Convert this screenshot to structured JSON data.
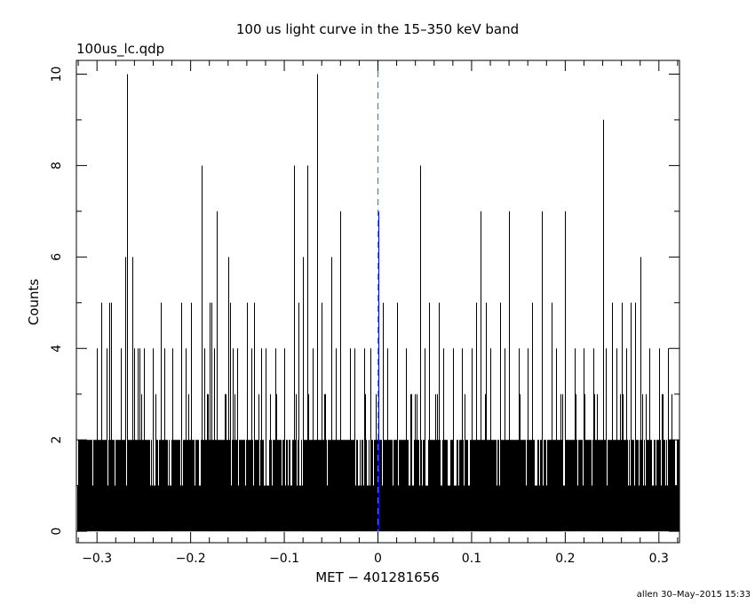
{
  "page": {
    "title": "100 us light curve in the 15–350 keV band",
    "file_label": "100us_lc.qdp",
    "timestamp": "allen 30–May–2015 15:33"
  },
  "colors": {
    "background": "#ffffff",
    "foreground": "#000000",
    "trigger_line": "#00a0c8",
    "trigger_bin": "#0000ff"
  },
  "chart_data": {
    "type": "bar",
    "style": "histogram-step",
    "title": "100 us light curve in the 15–350 keV band",
    "xlabel": "MET − 401281656",
    "ylabel": "Counts",
    "xlim": [
      -0.322,
      0.322
    ],
    "ylim": [
      -0.25,
      10.3
    ],
    "bin_width": 0.0001,
    "x_ticks": [
      -0.3,
      -0.2,
      -0.1,
      0,
      0.1,
      0.2,
      0.3
    ],
    "x_tick_labels": [
      "−0.3",
      "−0.2",
      "−0.1",
      "0",
      "0.1",
      "0.2",
      "0.3"
    ],
    "y_ticks": [
      0,
      2,
      4,
      6,
      8,
      10
    ],
    "y_tick_labels": [
      "0",
      "2",
      "4",
      "6",
      "8",
      "10"
    ],
    "grid": false,
    "legend": "none",
    "baseline_counts": "0–2 counts per bin across the full range, occasionally 3",
    "spikes": {
      "x": [
        -0.3,
        -0.295,
        -0.29,
        -0.287,
        -0.285,
        -0.275,
        -0.27,
        -0.268,
        -0.262,
        -0.26,
        -0.257,
        -0.255,
        -0.25,
        -0.24,
        -0.232,
        -0.228,
        -0.22,
        -0.21,
        -0.205,
        -0.2,
        -0.188,
        -0.185,
        -0.18,
        -0.178,
        -0.175,
        -0.172,
        -0.16,
        -0.158,
        -0.155,
        -0.15,
        -0.14,
        -0.135,
        -0.132,
        -0.125,
        -0.12,
        -0.11,
        -0.1,
        -0.09,
        -0.085,
        -0.08,
        -0.075,
        -0.07,
        -0.065,
        -0.06,
        -0.05,
        -0.045,
        -0.04,
        -0.03,
        -0.025,
        -0.015,
        -0.008,
        0,
        0.005,
        0.01,
        0.02,
        0.03,
        0.045,
        0.05,
        0.055,
        0.065,
        0.07,
        0.08,
        0.09,
        0.1,
        0.105,
        0.11,
        0.115,
        0.12,
        0.13,
        0.135,
        0.14,
        0.15,
        0.16,
        0.165,
        0.175,
        0.185,
        0.19,
        0.2,
        0.21,
        0.22,
        0.23,
        0.24,
        0.243,
        0.25,
        0.255,
        0.26,
        0.265,
        0.27,
        0.275,
        0.28,
        0.29,
        0.3,
        0.31
      ],
      "counts": [
        4,
        5,
        4,
        5,
        5,
        4,
        6,
        10,
        6,
        4,
        4,
        4,
        4,
        4,
        5,
        4,
        4,
        5,
        4,
        5,
        8,
        4,
        5,
        5,
        4,
        7,
        6,
        5,
        4,
        4,
        5,
        4,
        5,
        4,
        4,
        4,
        4,
        8,
        5,
        6,
        8,
        4,
        10,
        5,
        6,
        4,
        7,
        4,
        4,
        4,
        4,
        7,
        5,
        4,
        5,
        4,
        8,
        4,
        5,
        5,
        4,
        4,
        4,
        4,
        5,
        7,
        5,
        4,
        5,
        4,
        7,
        4,
        4,
        5,
        7,
        5,
        4,
        7,
        4,
        4,
        4,
        9,
        4,
        5,
        4,
        5,
        4,
        5,
        5,
        6,
        4,
        4,
        4
      ]
    },
    "trigger_time": 0
  }
}
